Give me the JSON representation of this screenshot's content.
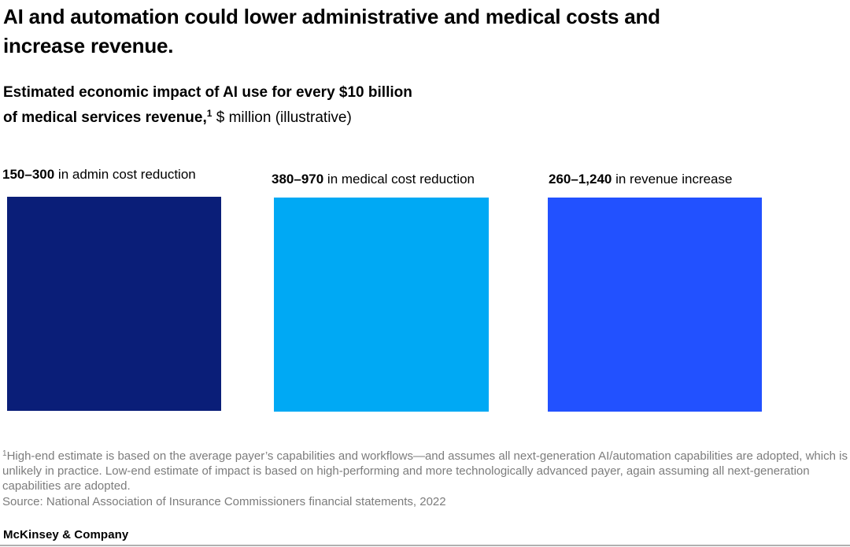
{
  "page": {
    "title_line1": "AI and automation could lower administrative and medical costs and",
    "title_line2": "increase revenue.",
    "subtitle": {
      "bold_line1": "Estimated economic impact of AI use for every $10 billion",
      "bold_line2": "of medical services revenue,",
      "footnote_marker": "1",
      "regular": " $ million (illustrative)"
    },
    "footnote": {
      "marker": "1",
      "text": "High-end estimate is based on the average payer’s capabilities and workflows—and assumes all next-generation AI/automation capabilities are adopted, which is unlikely in practice. Low-end estimate of impact is based on high-performing and more technologically advanced payer, again assuming all next-generation capabilities are adopted.",
      "source": "Source: National Association of Insurance Commissioners financial statements, 2022"
    },
    "wordmark": "McKinsey & Company"
  },
  "chart": {
    "columns": [
      {
        "range": "150–300",
        "label": " in admin cost reduction",
        "color": "#0a1e78"
      },
      {
        "range": "380–970",
        "label": " in medical cost reduction",
        "color": "#00a9f4"
      },
      {
        "range": "260–1,240",
        "label": " in revenue increase",
        "color": "#2251ff"
      }
    ]
  },
  "chart_data": {
    "type": "bar",
    "title": "Estimated economic impact of AI use for every $10 billion of medical services revenue, $ million (illustrative)",
    "categories": [
      "admin cost reduction",
      "medical cost reduction",
      "revenue increase"
    ],
    "series": [
      {
        "name": "low-end estimate",
        "values": [
          150,
          380,
          260
        ]
      },
      {
        "name": "high-end estimate",
        "values": [
          300,
          970,
          1240
        ]
      }
    ],
    "value_labels": [
      "150–300",
      "380–970",
      "260–1,240"
    ],
    "unit": "$ million",
    "colors": [
      "#0a1e78",
      "#00a9f4",
      "#2251ff"
    ],
    "legend": "none",
    "grid": false,
    "layout_note": "three equal-sized color squares (illustrative), range label above each square"
  },
  "colors": {
    "background": "#ffffff",
    "text": "#000000",
    "footnote_gray": "#7c7c7c",
    "rule_gray": "#b0b0b0",
    "navy": "#0a1e78",
    "cyan": "#00a9f4",
    "electric_blue": "#2251ff"
  }
}
